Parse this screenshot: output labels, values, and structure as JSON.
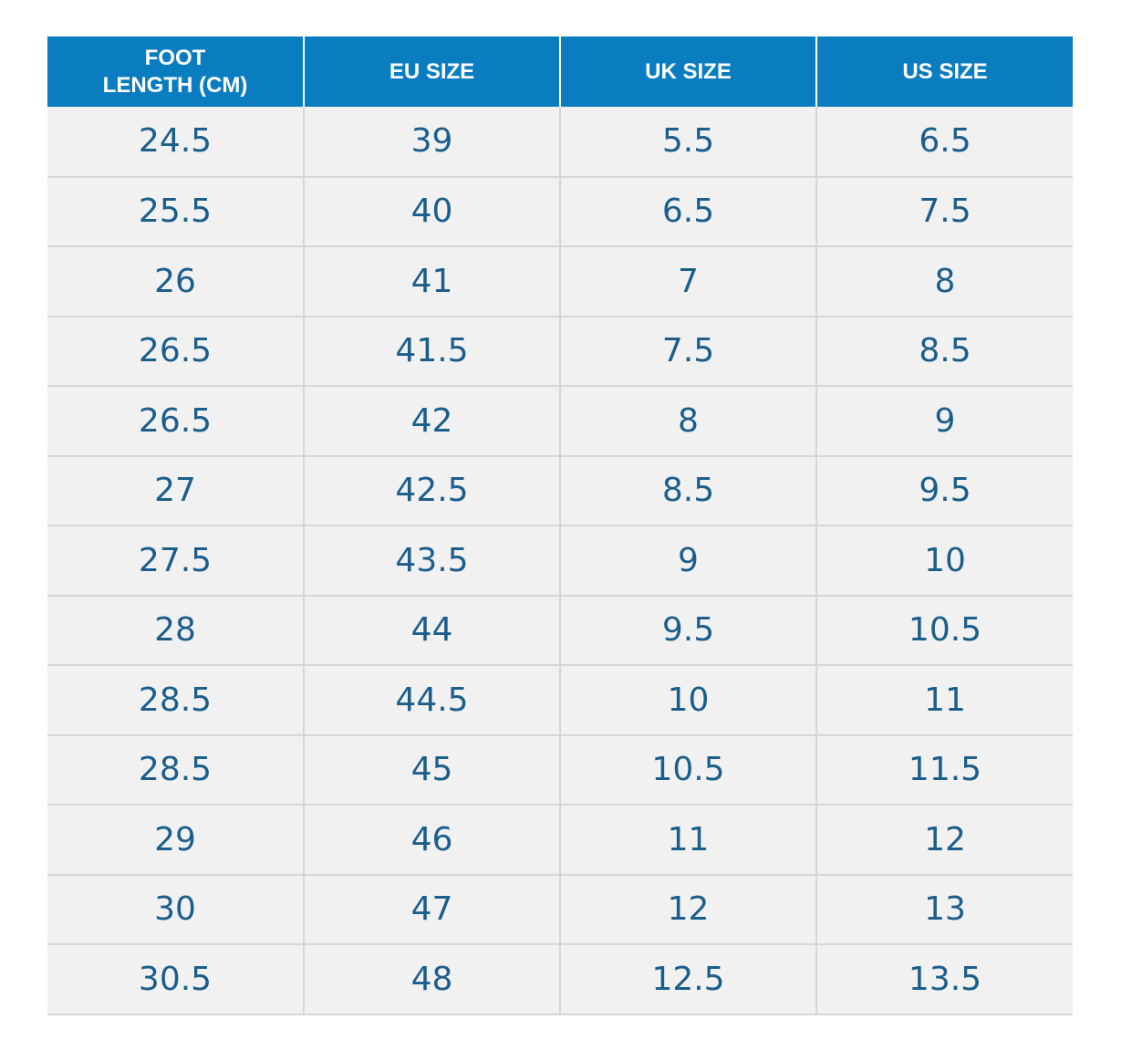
{
  "table": {
    "headers": [
      {
        "line1": "FOOT",
        "line2": "LENGTH (CM)"
      },
      {
        "line1": "EU SIZE",
        "line2": ""
      },
      {
        "line1": "UK SIZE",
        "line2": ""
      },
      {
        "line1": "US SIZE",
        "line2": ""
      }
    ],
    "rows": [
      [
        "24.5",
        "39",
        "5.5",
        "6.5"
      ],
      [
        "25.5",
        "40",
        "6.5",
        "7.5"
      ],
      [
        "26",
        "41",
        "7",
        "8"
      ],
      [
        "26.5",
        "41.5",
        "7.5",
        "8.5"
      ],
      [
        "26.5",
        "42",
        "8",
        "9"
      ],
      [
        "27",
        "42.5",
        "8.5",
        "9.5"
      ],
      [
        "27.5",
        "43.5",
        "9",
        "10"
      ],
      [
        "28",
        "44",
        "9.5",
        "10.5"
      ],
      [
        "28.5",
        "44.5",
        "10",
        "11"
      ],
      [
        "28.5",
        "45",
        "10.5",
        "11.5"
      ],
      [
        "29",
        "46",
        "11",
        "12"
      ],
      [
        "30",
        "47",
        "12",
        "13"
      ],
      [
        "30.5",
        "48",
        "12.5",
        "13.5"
      ]
    ]
  },
  "colors": {
    "header_background": "#0a7dc1",
    "header_text": "#ffffff",
    "cell_background": "#f1f1f1",
    "cell_text": "#1b5e8c",
    "grid_line": "#d6d6d6"
  }
}
